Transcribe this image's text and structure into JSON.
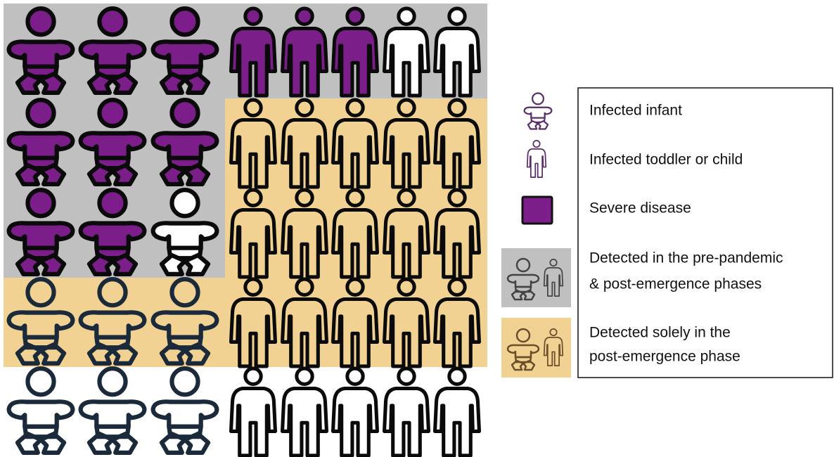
{
  "legend": {
    "items": [
      {
        "lines": [
          "Infected infant"
        ]
      },
      {
        "lines": [
          "Infected toddler or child"
        ]
      },
      {
        "lines": [
          "Severe disease"
        ]
      },
      {
        "lines": [
          "Detected in the pre-pandemic",
          "& post-emergence phases"
        ]
      },
      {
        "lines": [
          "Detected solely in the",
          "post-emergence phase"
        ]
      }
    ]
  }
}
